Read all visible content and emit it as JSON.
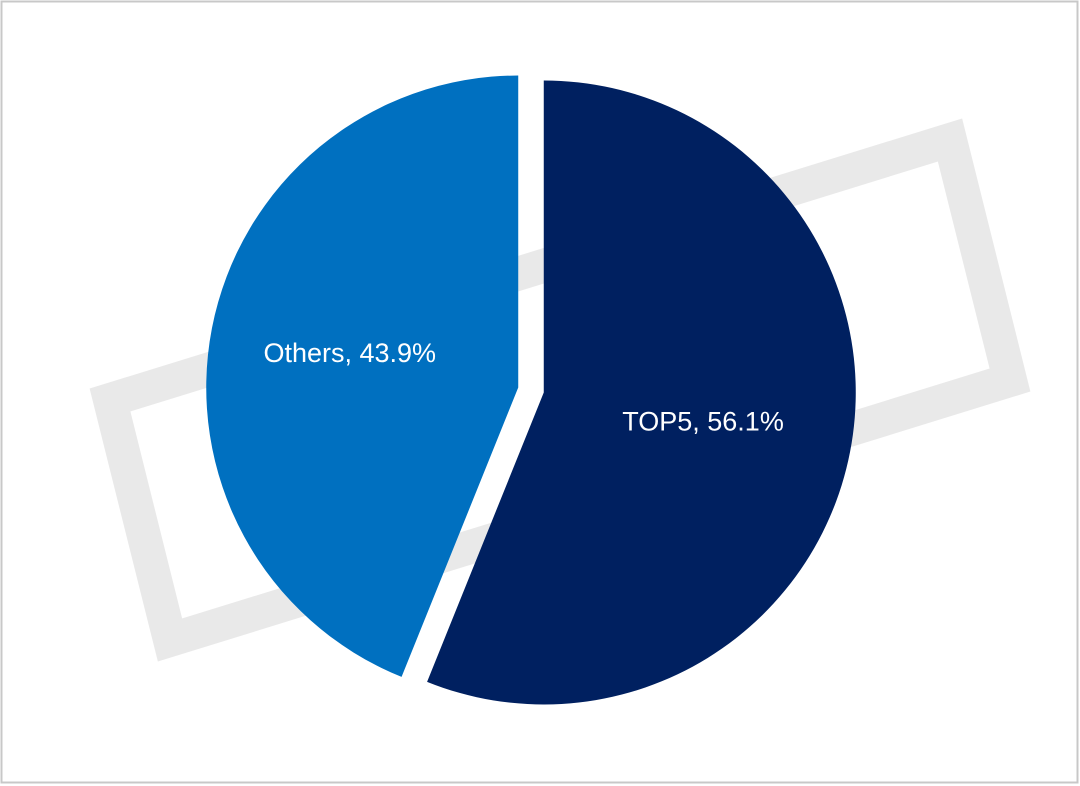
{
  "chart_data": {
    "type": "pie",
    "values": [
      56.1,
      43.9
    ],
    "value_labels": [
      "TOP5, 56.1%",
      "Others, 43.9%"
    ],
    "colors": [
      "#002060",
      "#0070c0"
    ]
  }
}
